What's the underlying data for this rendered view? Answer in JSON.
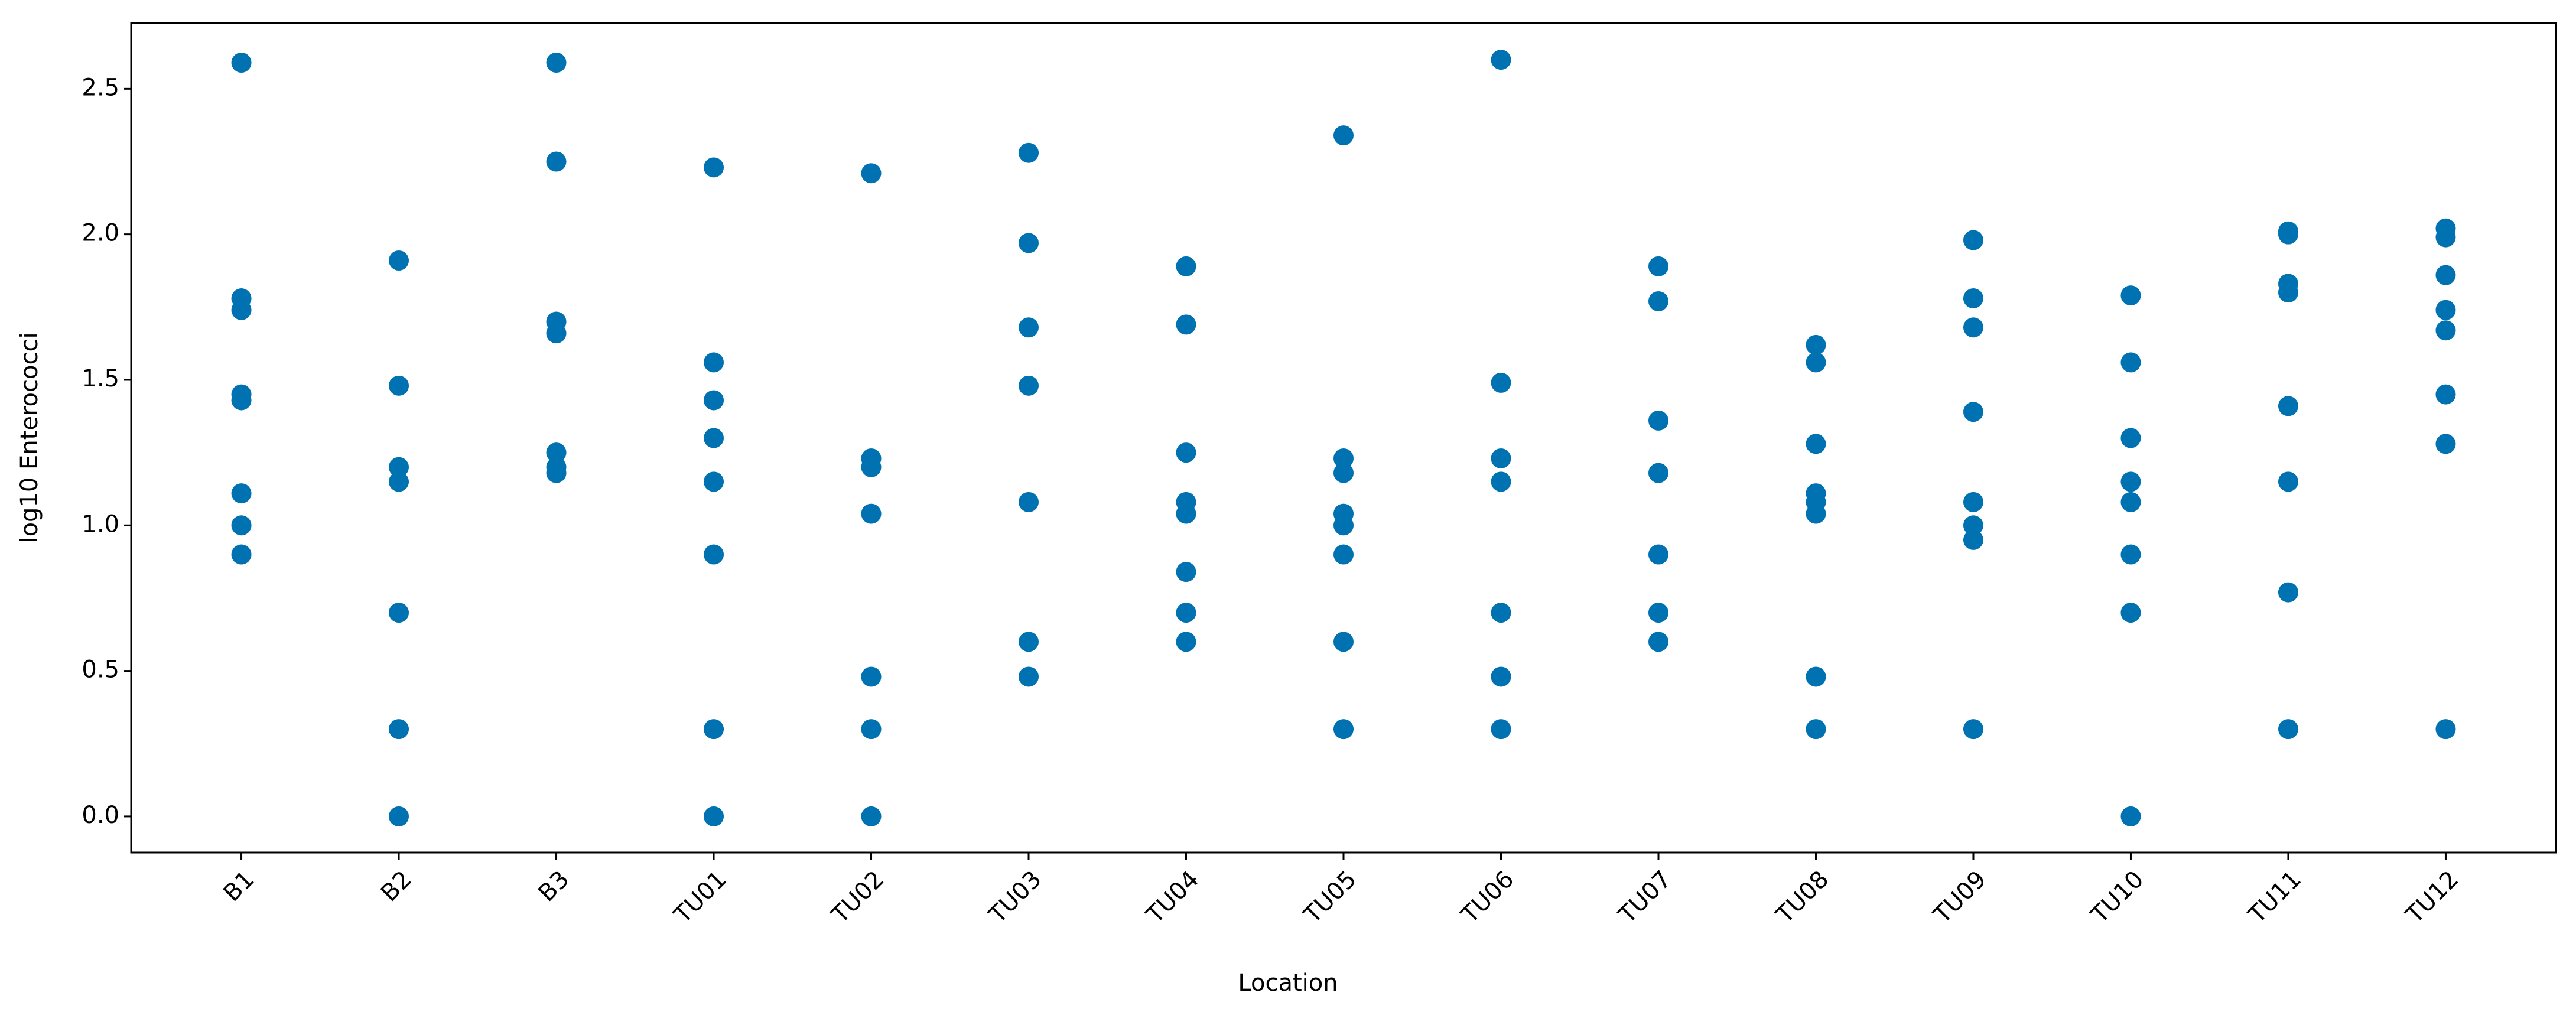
{
  "chart_data": {
    "type": "scatter",
    "x_label": "Location",
    "y_label": "log10 Enterococci",
    "categories": [
      "B1",
      "B2",
      "B3",
      "TU01",
      "TU02",
      "TU03",
      "TU04",
      "TU05",
      "TU06",
      "TU07",
      "TU08",
      "TU09",
      "TU10",
      "TU11",
      "TU12"
    ],
    "series": [
      {
        "color": "#0072b2",
        "values": [
          [
            2.59,
            1.78,
            1.74,
            1.45,
            1.43,
            1.11,
            1.0,
            0.9
          ],
          [
            1.91,
            1.48,
            1.2,
            1.15,
            0.7,
            0.3,
            0.0
          ],
          [
            2.59,
            2.25,
            1.7,
            1.66,
            1.25,
            1.2,
            1.18
          ],
          [
            2.23,
            1.56,
            1.43,
            1.3,
            1.15,
            0.9,
            0.3,
            0.0
          ],
          [
            2.21,
            1.23,
            1.2,
            1.04,
            0.48,
            0.3,
            0.0
          ],
          [
            2.28,
            1.97,
            1.68,
            1.48,
            1.08,
            0.6,
            0.48
          ],
          [
            1.89,
            1.69,
            1.25,
            1.08,
            1.04,
            0.84,
            0.7,
            0.6
          ],
          [
            2.34,
            1.23,
            1.18,
            1.04,
            1.0,
            0.9,
            0.6,
            0.3
          ],
          [
            2.6,
            1.49,
            1.23,
            1.15,
            0.7,
            0.48,
            0.3
          ],
          [
            1.89,
            1.77,
            1.36,
            1.18,
            0.9,
            0.7,
            0.6
          ],
          [
            1.62,
            1.56,
            1.28,
            1.11,
            1.08,
            1.04,
            0.48,
            0.3
          ],
          [
            1.98,
            1.78,
            1.68,
            1.39,
            1.08,
            1.0,
            0.95,
            0.3
          ],
          [
            1.79,
            1.56,
            1.3,
            1.15,
            1.08,
            0.9,
            0.7,
            0.0
          ],
          [
            2.01,
            2.0,
            1.83,
            1.8,
            1.41,
            1.15,
            0.77,
            0.3
          ],
          [
            2.02,
            1.99,
            1.86,
            1.74,
            1.67,
            1.45,
            1.28,
            0.3
          ]
        ]
      }
    ],
    "ylim": [
      -0.124,
      2.726
    ],
    "yticks": [
      {
        "value": 0,
        "label": "0.0"
      },
      0.5,
      {
        "value": 1,
        "label": "1.0"
      },
      1.5,
      {
        "value": 2,
        "label": "2.0"
      },
      2.5
    ],
    "grid": false
  }
}
